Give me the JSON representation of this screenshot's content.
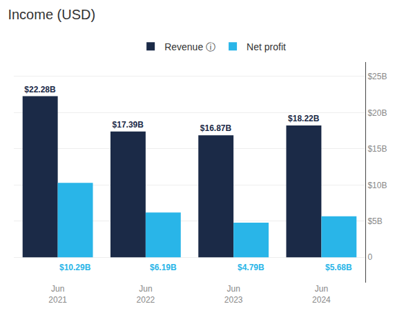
{
  "chart_data": {
    "type": "bar",
    "title": "Income (USD)",
    "categories": [
      "Jun\n2021",
      "Jun\n2022",
      "Jun\n2023",
      "Jun\n2024"
    ],
    "series": [
      {
        "name": "Revenue ⓘ",
        "color": "#1b2a47",
        "values": [
          22.28,
          17.39,
          16.87,
          18.22
        ],
        "value_labels": [
          "$22.28B",
          "$17.39B",
          "$16.87B",
          "$18.22B"
        ]
      },
      {
        "name": "Net profit",
        "color": "#29b5e8",
        "values": [
          10.29,
          6.19,
          4.79,
          5.68
        ],
        "value_labels": [
          "$10.29B",
          "$6.19B",
          "$4.79B",
          "$5.68B"
        ]
      }
    ],
    "ylim": [
      -3.5,
      27
    ],
    "yticks": [
      0,
      {
        "value": 5,
        "label": "$5B"
      },
      {
        "value": 10,
        "label": "$10B"
      },
      {
        "value": 15,
        "label": "$15B"
      },
      {
        "value": 20,
        "label": "$20B"
      },
      {
        "value": 25,
        "label": "$25B"
      }
    ],
    "grid": true,
    "legend": "top",
    "data_labels": true
  }
}
